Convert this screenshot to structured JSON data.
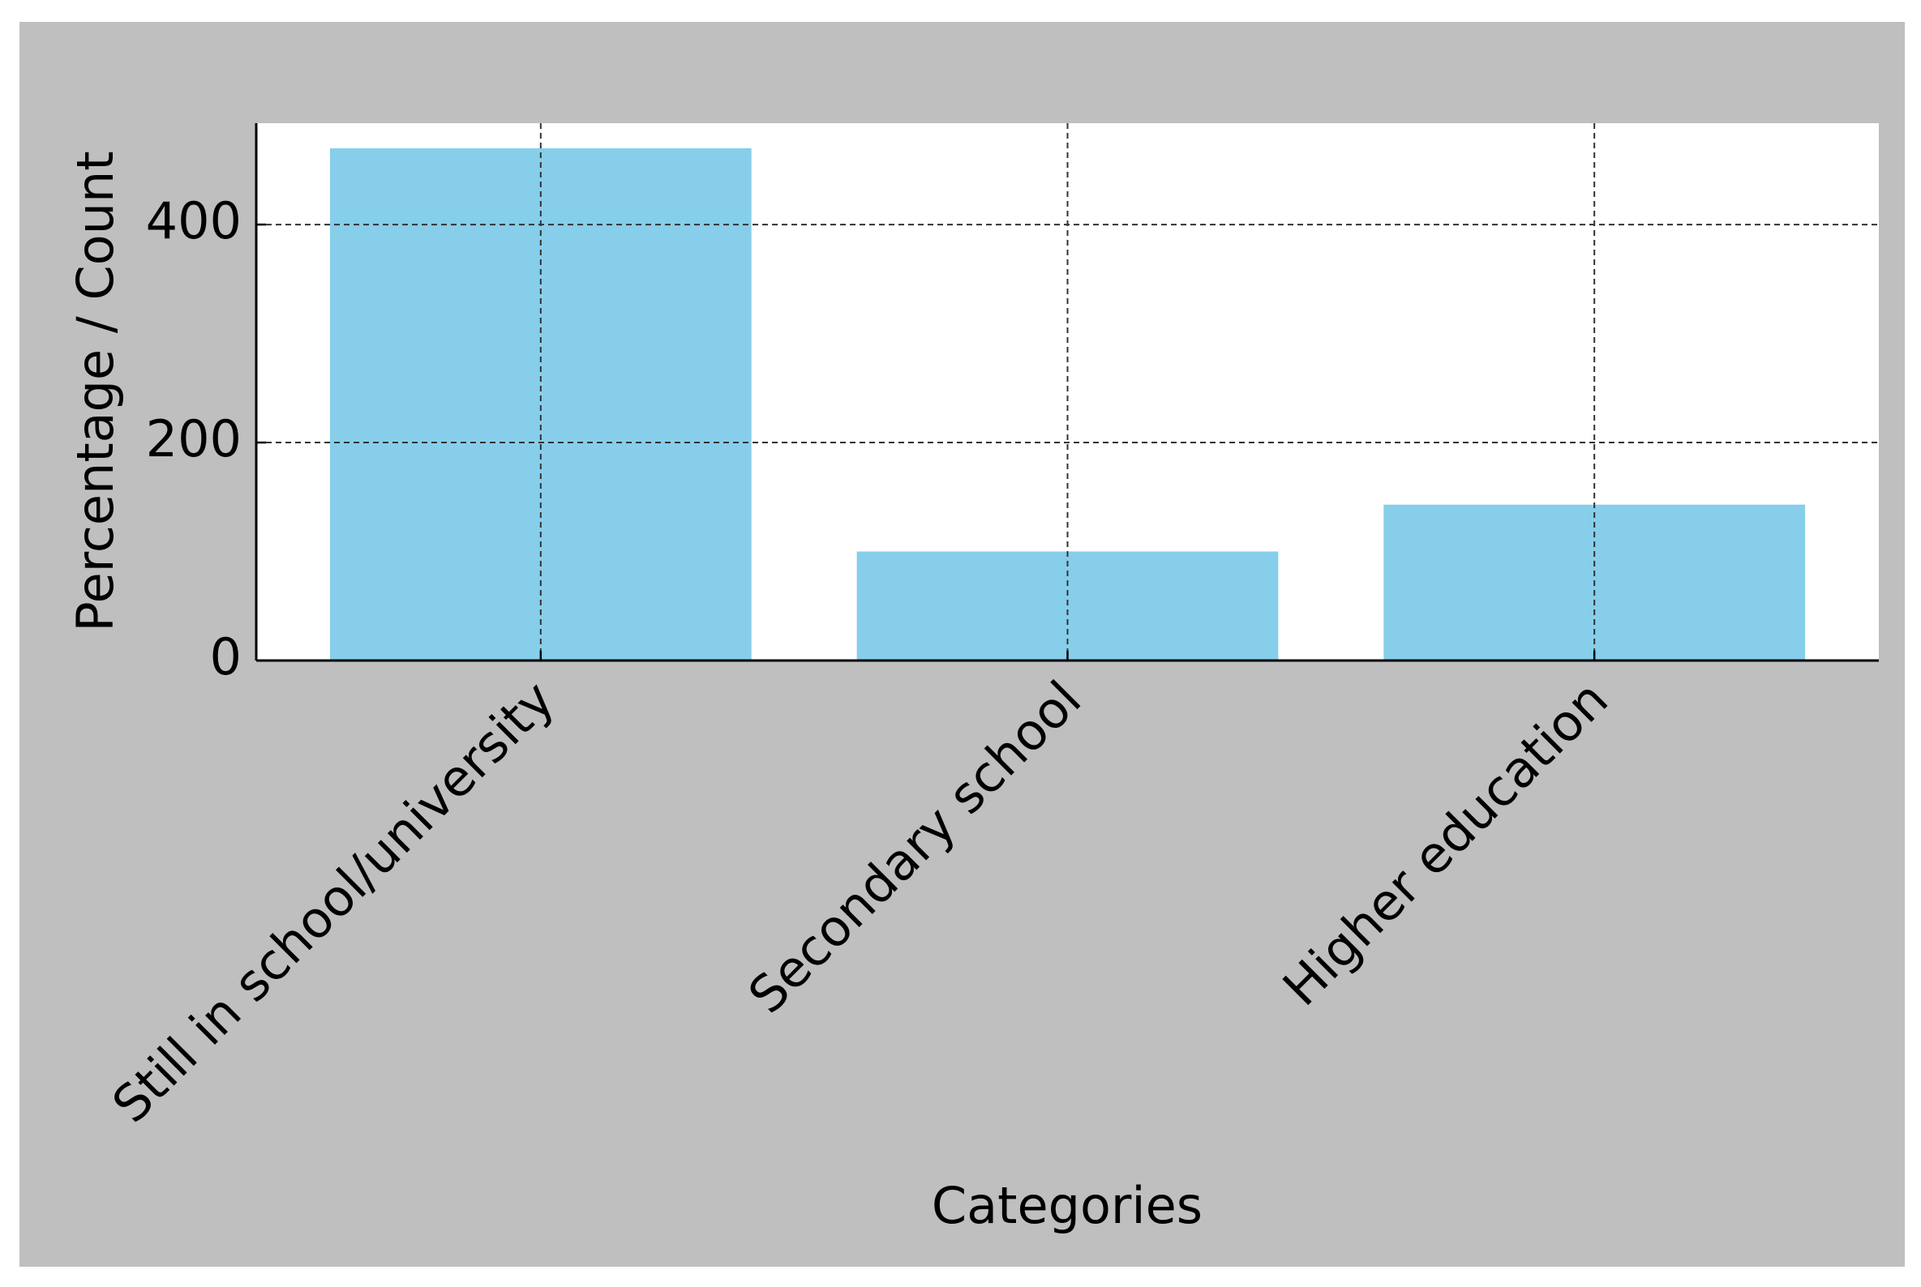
{
  "chart_data": {
    "type": "bar",
    "xlabel": "Categories",
    "ylabel": "Percentage / Count",
    "categories": [
      "Still in school/university",
      "Secondary school",
      "Higher education"
    ],
    "values": [
      470,
      100,
      143
    ],
    "color": "#87ceeb",
    "ylim": [
      0,
      493
    ],
    "yticks": [
      0,
      200,
      400
    ],
    "grid": true
  }
}
